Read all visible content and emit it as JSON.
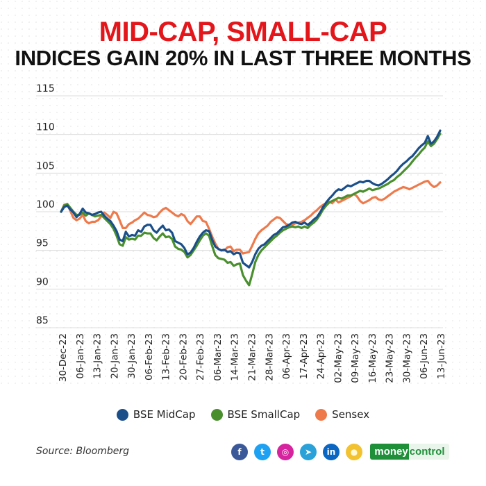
{
  "header": {
    "title_line1": "MID-CAP, SMALL-CAP",
    "title_line2": "INDICES GAIN 20% IN LAST THREE MONTHS"
  },
  "chart_data": {
    "type": "line",
    "title": "MID-CAP, SMALL-CAP INDICES GAIN 20% IN LAST THREE MONTHS",
    "xlabel": "",
    "ylabel": "",
    "ylim": [
      85,
      115
    ],
    "yticks": [
      85,
      90,
      95,
      100,
      105,
      110,
      115
    ],
    "grid": true,
    "legend_position": "bottom-center",
    "x_tick_labels": [
      "30-Dec-22",
      "06-Jan-23",
      "13-Jan-23",
      "20-Jan-23",
      "30-Jan-23",
      "06-Feb-23",
      "13-Feb-23",
      "20-Feb-23",
      "27-Feb-23",
      "06-Mar-23",
      "14-Mar-23",
      "21-Mar-23",
      "28-Mar-23",
      "06-Apr-23",
      "17-Apr-23",
      "24-Apr-23",
      "02-May-23",
      "09-May-23",
      "16-May-23",
      "23-May-23",
      "30-May-23",
      "06-Jun-23",
      "13-Jun-23"
    ],
    "series": [
      {
        "name": "BSE MidCap",
        "color": "#1b4f8a",
        "values": [
          100,
          100.6,
          100.8,
          100.3,
          99.9,
          99.3,
          99.7,
          100.4,
          99.9,
          99.8,
          99.6,
          99.7,
          99.9,
          100,
          99.5,
          99.1,
          98.8,
          98.2,
          97.5,
          96.4,
          96.2,
          97.4,
          96.8,
          97,
          96.9,
          97.6,
          97.4,
          98.1,
          98.3,
          98.3,
          97.6,
          97.3,
          97.8,
          98.2,
          97.6,
          97.7,
          97.3,
          96.2,
          96,
          95.8,
          95.3,
          94.5,
          94.7,
          95.3,
          96.1,
          96.8,
          97.3,
          97.6,
          97.5,
          96.4,
          95.5,
          95.2,
          95,
          95.1,
          94.8,
          94.9,
          94.5,
          94.7,
          94.6,
          93.4,
          93.1,
          92.8,
          93.5,
          94.5,
          95.2,
          95.6,
          95.8,
          96.2,
          96.6,
          97,
          97.2,
          97.6,
          98,
          98.1,
          98.3,
          98.6,
          98.7,
          98.5,
          98.4,
          98.6,
          98.3,
          98.6,
          99,
          99.3,
          99.9,
          100.6,
          101.2,
          101.7,
          102.1,
          102.6,
          102.9,
          102.8,
          103.1,
          103.4,
          103.3,
          103.5,
          103.7,
          103.9,
          103.8,
          104,
          104,
          103.7,
          103.5,
          103.4,
          103.6,
          103.9,
          104.2,
          104.6,
          104.9,
          105.3,
          105.8,
          106.2,
          106.5,
          106.9,
          107.2,
          107.7,
          108.2,
          108.6,
          108.9,
          109.8,
          108.8,
          109.1,
          109.7,
          110.5
        ]
      },
      {
        "name": "BSE SmallCap",
        "color": "#4a8f2e",
        "values": [
          100,
          100.8,
          101,
          100.5,
          100,
          99.6,
          99.6,
          99.9,
          99.5,
          99.8,
          99.6,
          99.4,
          99.5,
          99.6,
          99.2,
          98.8,
          98.4,
          97.8,
          96.9,
          95.8,
          95.6,
          96.7,
          96.4,
          96.5,
          96.4,
          96.9,
          96.9,
          97.3,
          97.2,
          97.2,
          96.6,
          96.3,
          96.8,
          97.2,
          96.7,
          96.8,
          96.5,
          95.5,
          95.2,
          95.1,
          94.8,
          94.1,
          94.4,
          95,
          95.6,
          96.3,
          96.9,
          97.2,
          96.9,
          95.6,
          94.4,
          94,
          93.9,
          93.8,
          93.4,
          93.5,
          93,
          93.2,
          93.3,
          91.8,
          91.1,
          90.5,
          91.9,
          93.5,
          94.4,
          95,
          95.4,
          95.8,
          96.2,
          96.6,
          96.9,
          97.3,
          97.6,
          97.8,
          98,
          98.1,
          98,
          98.1,
          97.9,
          98.1,
          97.9,
          98.3,
          98.6,
          99,
          99.6,
          100.3,
          100.8,
          101.2,
          101.4,
          101.6,
          101.8,
          101.7,
          101.9,
          102.1,
          102.1,
          102.3,
          102.5,
          102.7,
          102.6,
          102.8,
          103,
          102.8,
          102.9,
          103,
          103.2,
          103.4,
          103.6,
          103.9,
          104.1,
          104.5,
          104.8,
          105.2,
          105.6,
          106,
          106.5,
          107,
          107.4,
          107.9,
          108.3,
          109.1,
          108.5,
          108.8,
          109.4,
          110.1
        ]
      },
      {
        "name": "Sensex",
        "color": "#ee7a4b",
        "values": [
          100,
          100.9,
          101,
          100.1,
          99.2,
          98.9,
          99.1,
          99.6,
          98.8,
          98.5,
          98.7,
          98.7,
          98.9,
          99.4,
          99.9,
          99.6,
          99.2,
          100,
          99.8,
          98.9,
          97.9,
          97.9,
          98.4,
          98.6,
          98.9,
          99.1,
          99.5,
          99.9,
          99.6,
          99.5,
          99.3,
          99.4,
          99.9,
          100.3,
          100.5,
          100.2,
          99.9,
          99.6,
          99.4,
          99.7,
          99.5,
          98.8,
          98.4,
          98.9,
          99.4,
          99.4,
          98.8,
          98.7,
          97.8,
          96.8,
          95.9,
          95.2,
          95,
          95,
          95.4,
          95.5,
          94.9,
          95.1,
          95.1,
          94.6,
          94.7,
          94.8,
          95.6,
          96.5,
          97.2,
          97.6,
          97.9,
          98.2,
          98.7,
          99,
          99.3,
          99.2,
          98.8,
          98.4,
          98.3,
          98.3,
          98.5,
          98.6,
          98.7,
          98.9,
          99.2,
          99.5,
          99.9,
          100.2,
          100.6,
          100.9,
          101.1,
          101.3,
          101.1,
          101.6,
          101.2,
          101.4,
          101.6,
          101.8,
          102,
          102.3,
          102,
          101.4,
          101.1,
          101.3,
          101.5,
          101.8,
          101.9,
          101.6,
          101.5,
          101.7,
          102,
          102.3,
          102.6,
          102.8,
          103,
          103.2,
          103.1,
          102.9,
          103.1,
          103.3,
          103.5,
          103.7,
          103.9,
          104,
          103.5,
          103.2,
          103.4,
          103.8
        ]
      }
    ]
  },
  "legend": {
    "items": [
      {
        "label": "BSE MidCap",
        "color": "#1b4f8a"
      },
      {
        "label": "BSE SmallCap",
        "color": "#4a8f2e"
      },
      {
        "label": "Sensex",
        "color": "#ee7a4b"
      }
    ]
  },
  "footer": {
    "source": "Source: Bloomberg",
    "social_icons": [
      "facebook-icon",
      "twitter-icon",
      "instagram-icon",
      "telegram-icon",
      "linkedin-icon",
      "koo-icon"
    ],
    "social_glyphs": [
      "f",
      "t",
      "◎",
      "➤",
      "in",
      "●"
    ],
    "social_colors": [
      "#3b5998",
      "#1da1f2",
      "#d6249f",
      "#2aa2d9",
      "#0a66c2",
      "#f2c230"
    ],
    "brand_part1": "money",
    "brand_part2": "control"
  }
}
